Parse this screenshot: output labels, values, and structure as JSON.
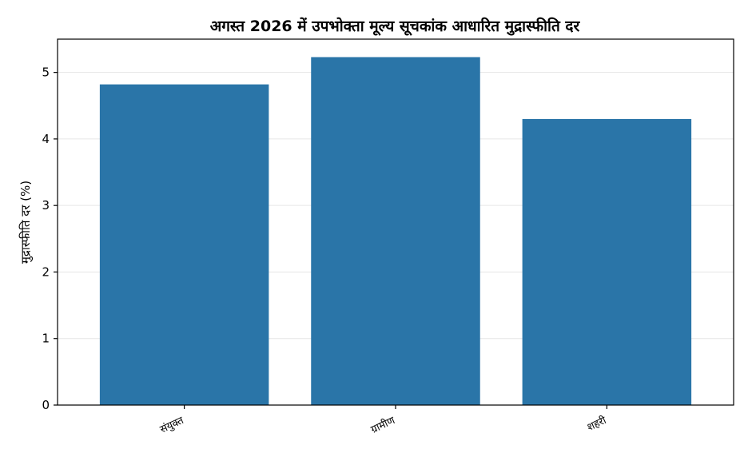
{
  "chart_data": {
    "type": "bar",
    "title": "अगस्त 2026 में उपभोक्ता मूल्य सूचकांक आधारित मुद्रास्फीति दर",
    "xlabel": "",
    "ylabel": "मुद्रास्फीति दर (%)",
    "categories": [
      "संयुक्त",
      "ग्रामीण",
      "शहरी"
    ],
    "values": [
      4.82,
      5.23,
      4.3
    ],
    "ylim": [
      0,
      5.5
    ],
    "yticks": [
      0,
      1,
      2,
      3,
      4,
      5
    ],
    "grid": "y",
    "bar_color": "#2a75a8",
    "grid_color": "#e6e6e6"
  }
}
